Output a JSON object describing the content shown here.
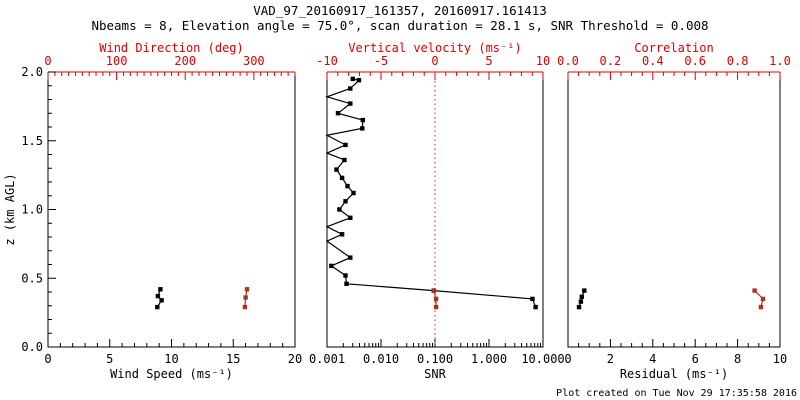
{
  "chart_data": {
    "type": "line",
    "title": "VAD_97_20160917_161357, 20160917.161413",
    "subtitle": "Nbeams = 8, Elevation angle = 75.0°, scan duration = 28.1 s, SNR Threshold = 0.008",
    "footer": "Plot created on Tue Nov 29 17:35:58 2016",
    "colors": {
      "axis_black": "#000000",
      "axis_red": "#dd0000",
      "series_black": "#000000",
      "series_dark_red": "#aa3322",
      "refline_red": "#ee2200"
    },
    "y_axis": {
      "label": "z (km AGL)",
      "scale": "linear",
      "min": 0,
      "max": 2,
      "major_step": 0.5,
      "minor_step": 0.1,
      "tick_labels": [
        "0.0",
        "0.5",
        "1.0",
        "1.5",
        "2.0"
      ]
    },
    "panels": [
      {
        "id": "wind",
        "bottom_axis": {
          "label": "Wind Speed (ms⁻¹)",
          "scale": "linear",
          "min": 0,
          "max": 20,
          "major_step": 5,
          "minor_step": 1,
          "tick_labels": [
            "0",
            "5",
            "10",
            "15",
            "20"
          ]
        },
        "top_axis": {
          "label": "Wind Direction (deg)",
          "scale": "linear",
          "min": 0,
          "max": 360,
          "major_step": 100,
          "minor_step": 10,
          "tick_labels": [
            "0",
            "100",
            "200",
            "300"
          ]
        },
        "series": [
          {
            "name": "wind_speed",
            "axis": "bottom",
            "color": "series_black",
            "points": [
              [
                9.1,
                0.42
              ],
              [
                8.9,
                0.37
              ],
              [
                9.2,
                0.34
              ],
              [
                8.85,
                0.29
              ]
            ]
          },
          {
            "name": "wind_direction",
            "axis": "top",
            "color": "series_dark_red",
            "points": [
              [
                290,
                0.42
              ],
              [
                288,
                0.36
              ],
              [
                287,
                0.29
              ]
            ]
          }
        ]
      },
      {
        "id": "snr",
        "bottom_axis": {
          "label": "SNR",
          "scale": "log",
          "min": 0.001,
          "max": 10,
          "tick_labels": [
            "0.001",
            "0.010",
            "0.100",
            "1.000",
            "10.000"
          ]
        },
        "top_axis": {
          "label": "Vertical velocity (ms⁻¹)",
          "scale": "linear",
          "min": -10,
          "max": 10,
          "major_step": 5,
          "minor_step": 1,
          "tick_labels": [
            "-10",
            "-5",
            "0",
            "5",
            "10"
          ]
        },
        "refline": {
          "axis": "top",
          "value": 0,
          "color": "refline_red",
          "style": "dotted"
        },
        "series": [
          {
            "name": "snr",
            "axis": "bottom",
            "color": "series_black",
            "points": [
              [
                0.003,
                1.95
              ],
              [
                0.0039,
                1.94
              ],
              [
                0.0027,
                1.88
              ],
              [
                0.001,
                1.82
              ],
              [
                0.0027,
                1.77
              ],
              [
                0.0016,
                1.7
              ],
              [
                0.0046,
                1.65
              ],
              [
                0.0045,
                1.59
              ],
              [
                0.001,
                1.54
              ],
              [
                0.0022,
                1.47
              ],
              [
                0.001,
                1.41
              ],
              [
                0.0021,
                1.36
              ],
              [
                0.0015,
                1.29
              ],
              [
                0.0019,
                1.23
              ],
              [
                0.0024,
                1.17
              ],
              [
                0.0031,
                1.12
              ],
              [
                0.0022,
                1.06
              ],
              [
                0.0017,
                1.0
              ],
              [
                0.0027,
                0.94
              ],
              [
                0.001,
                0.875
              ],
              [
                0.0019,
                0.82
              ],
              [
                0.001,
                0.77
              ],
              [
                0.0027,
                0.65
              ],
              [
                0.0012,
                0.59
              ],
              [
                0.0022,
                0.52
              ],
              [
                0.0023,
                0.46
              ],
              [
                0.095,
                0.41
              ],
              [
                6.4,
                0.35
              ],
              [
                7.3,
                0.29
              ]
            ]
          },
          {
            "name": "vertical_velocity",
            "axis": "top",
            "color": "series_dark_red",
            "points": [
              [
                -0.1,
                0.41
              ],
              [
                0.1,
                0.35
              ],
              [
                0.1,
                0.29
              ]
            ]
          }
        ]
      },
      {
        "id": "residual",
        "bottom_axis": {
          "label": "Residual (ms⁻¹)",
          "scale": "linear",
          "min": 0,
          "max": 10,
          "major_step": 2,
          "minor_step": 0.5,
          "tick_labels": [
            "0",
            "2",
            "4",
            "6",
            "8",
            "10"
          ]
        },
        "top_axis": {
          "label": "Correlation",
          "scale": "linear",
          "min": 0,
          "max": 1,
          "major_step": 0.2,
          "minor_step": 0.05,
          "tick_labels": [
            "0.0",
            "0.2",
            "0.4",
            "0.6",
            "0.8",
            "1.0"
          ]
        },
        "series": [
          {
            "name": "residual",
            "axis": "bottom",
            "color": "series_black",
            "points": [
              [
                0.77,
                0.41
              ],
              [
                0.65,
                0.365
              ],
              [
                0.61,
                0.33
              ],
              [
                0.52,
                0.29
              ]
            ]
          },
          {
            "name": "correlation",
            "axis": "top",
            "color": "series_dark_red",
            "points": [
              [
                0.88,
                0.41
              ],
              [
                0.92,
                0.35
              ],
              [
                0.91,
                0.29
              ]
            ]
          }
        ]
      }
    ]
  }
}
